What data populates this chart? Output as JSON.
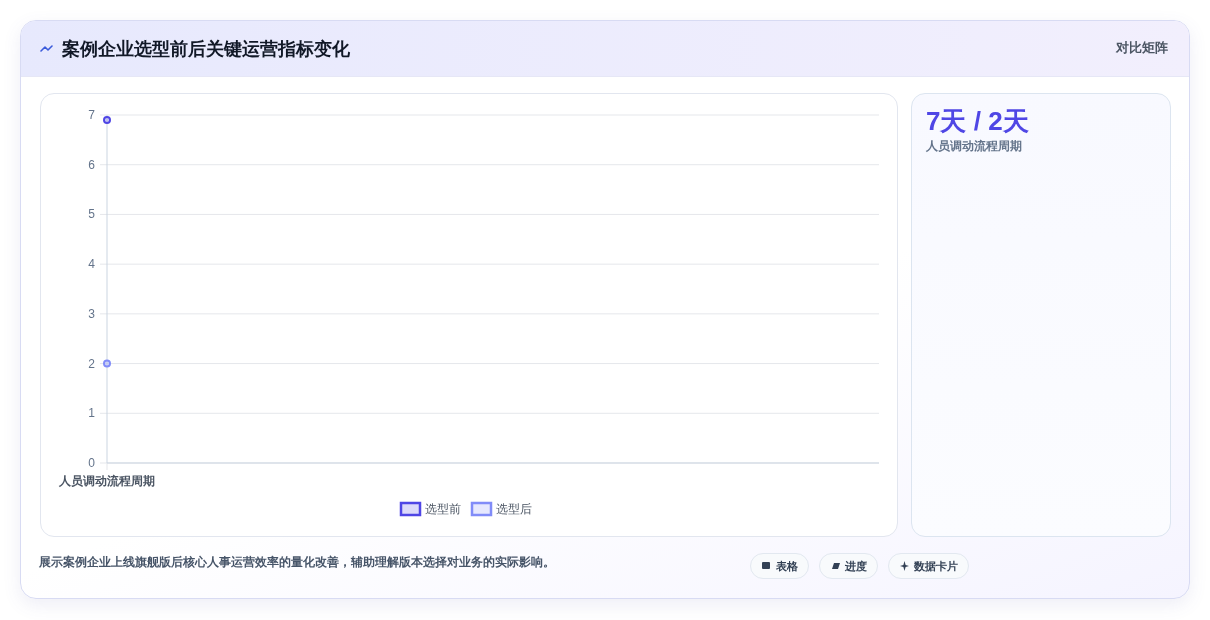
{
  "chart_data": [
    {
      "type": "line",
      "title": "案例企业选型前后关键运营指标变化",
      "categories": [
        "人员调动流程周期"
      ],
      "series": [
        {
          "name": "选型前",
          "color": "#4f46e5",
          "values": [
            6.9
          ]
        },
        {
          "name": "选型后",
          "color": "#818cf8",
          "values": [
            2
          ]
        }
      ],
      "ylim": [
        0,
        7
      ],
      "yticks": [
        0,
        1,
        2,
        3,
        4,
        5,
        6,
        7
      ],
      "grid": "y",
      "legend": "bottom",
      "marker": "circle",
      "annotations": [
        "对比矩阵",
        "展示案例企业上线旗舰版后核心人事运营效率的量化改善，辅助理解版本选择对业务的实际影响。",
        "表格",
        "进度",
        "数据卡片"
      ]
    },
    {
      "type": "other",
      "title": "7天 / 2天",
      "subtitle": "人员调动流程周期"
    }
  ]
}
